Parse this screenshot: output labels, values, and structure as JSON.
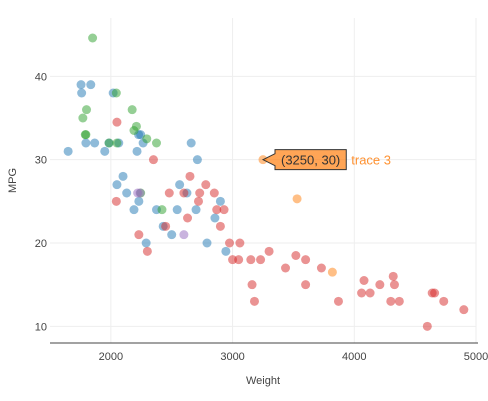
{
  "chart_data": {
    "type": "scatter",
    "title": "",
    "xlabel": "Weight",
    "ylabel": "MPG",
    "xlim": [
      1500,
      5000
    ],
    "ylim": [
      8,
      47
    ],
    "xticks": [
      2000,
      3000,
      4000,
      5000
    ],
    "yticks": [
      10,
      20,
      30,
      40
    ],
    "grid": true,
    "legend": "none",
    "series": [
      {
        "color": "#1f77b4",
        "points": [
          [
            1649,
            31
          ],
          [
            1755,
            39
          ],
          [
            1760,
            38
          ],
          [
            1795,
            32
          ],
          [
            1835,
            39
          ],
          [
            1867,
            32
          ],
          [
            1950,
            31
          ],
          [
            1985,
            32
          ],
          [
            2019,
            38
          ],
          [
            2050,
            27
          ],
          [
            2065,
            32
          ],
          [
            2100,
            28
          ],
          [
            2130,
            26
          ],
          [
            2190,
            24
          ],
          [
            2215,
            31
          ],
          [
            2228,
            33
          ],
          [
            2230,
            25
          ],
          [
            2245,
            33
          ],
          [
            2265,
            32
          ],
          [
            2290,
            20
          ],
          [
            2375,
            24
          ],
          [
            2430,
            22
          ],
          [
            2500,
            21
          ],
          [
            2545,
            24
          ],
          [
            2565,
            27
          ],
          [
            2625,
            26
          ],
          [
            2660,
            32
          ],
          [
            2700,
            24
          ],
          [
            2711,
            30
          ],
          [
            2790,
            20
          ],
          [
            2855,
            23
          ],
          [
            2900,
            25
          ],
          [
            2945,
            19
          ]
        ]
      },
      {
        "color": "#2ca02c",
        "points": [
          [
            1850,
            44.6
          ],
          [
            1800,
            36
          ],
          [
            1770,
            35
          ],
          [
            1790,
            33
          ],
          [
            1795,
            33
          ],
          [
            1985,
            32
          ],
          [
            2045,
            38
          ],
          [
            2050,
            32
          ],
          [
            2175,
            36
          ],
          [
            2190,
            33.5
          ],
          [
            2210,
            34
          ],
          [
            2245,
            26
          ],
          [
            2295,
            32.5
          ],
          [
            2375,
            32
          ],
          [
            2420,
            24
          ]
        ]
      },
      {
        "color": "#9467bd",
        "points": [
          [
            2220,
            26
          ],
          [
            2240,
            26
          ],
          [
            2600,
            21
          ]
        ]
      },
      {
        "color": "#d62728",
        "points": [
          [
            2045,
            25
          ],
          [
            2050,
            34.5
          ],
          [
            2230,
            21
          ],
          [
            2300,
            19
          ],
          [
            2350,
            30
          ],
          [
            2450,
            22
          ],
          [
            2480,
            26
          ],
          [
            2600,
            26
          ],
          [
            2630,
            23
          ],
          [
            2650,
            28
          ],
          [
            2720,
            25
          ],
          [
            2730,
            26
          ],
          [
            2780,
            27
          ],
          [
            2850,
            26
          ],
          [
            2870,
            24
          ],
          [
            2900,
            22
          ],
          [
            2930,
            24
          ],
          [
            2975,
            20
          ],
          [
            3000,
            18
          ],
          [
            3060,
            20
          ],
          [
            3050,
            18
          ],
          [
            3150,
            18
          ],
          [
            3160,
            15
          ],
          [
            3180,
            13
          ],
          [
            3230,
            18
          ],
          [
            3300,
            19
          ],
          [
            3435,
            17
          ],
          [
            3520,
            18.5
          ],
          [
            3600,
            18
          ],
          [
            3730,
            17
          ],
          [
            3870,
            13
          ],
          [
            3600,
            15
          ],
          [
            4060,
            14
          ],
          [
            4080,
            15.5
          ],
          [
            4130,
            14
          ],
          [
            4210,
            15
          ],
          [
            4300,
            13
          ],
          [
            4320,
            16
          ],
          [
            4330,
            15
          ],
          [
            4370,
            13
          ],
          [
            4600,
            10
          ],
          [
            4640,
            14
          ],
          [
            4660,
            14
          ],
          [
            4735,
            13
          ],
          [
            4900,
            12
          ]
        ]
      },
      {
        "color": "#ff7f0e",
        "points": [
          [
            3250,
            30
          ],
          [
            3530,
            25.3
          ],
          [
            3820,
            16.5
          ]
        ]
      }
    ],
    "hover": {
      "x": 3250,
      "y": 30,
      "label": "(3250, 30)",
      "trace": "trace 3",
      "color": "#ff7f0e"
    }
  }
}
